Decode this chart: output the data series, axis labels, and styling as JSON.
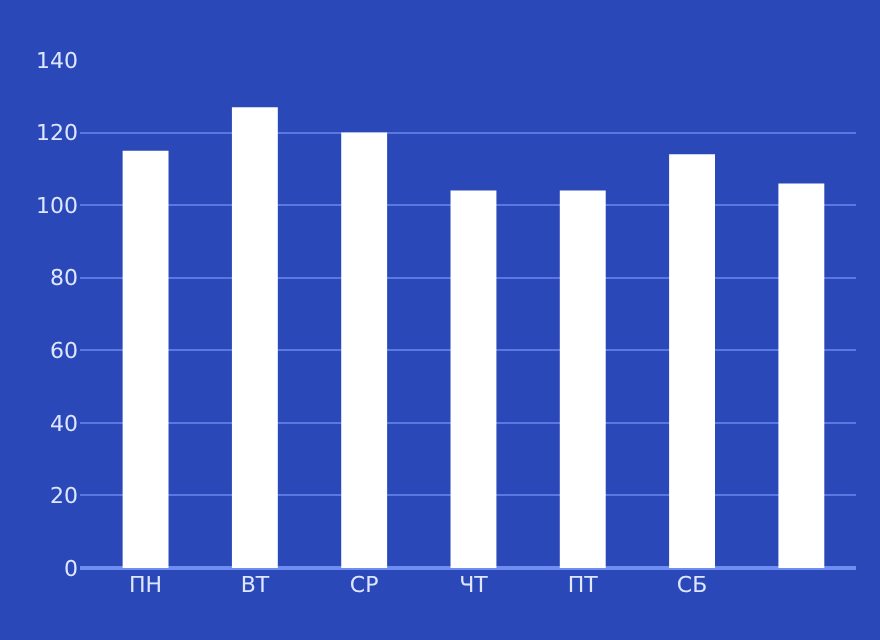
{
  "chart_data": {
    "type": "bar",
    "categories": [
      "ПН",
      "ВТ",
      "СР",
      "ЧТ",
      "ПТ",
      "СБ",
      null
    ],
    "values": [
      115,
      127,
      120,
      104,
      104,
      114,
      106
    ],
    "color": "#ffffff",
    "ylim": [
      0,
      140
    ],
    "yticks": [
      0,
      20,
      40,
      60,
      80,
      100,
      120,
      140
    ],
    "grid": "y",
    "legend": false
  }
}
